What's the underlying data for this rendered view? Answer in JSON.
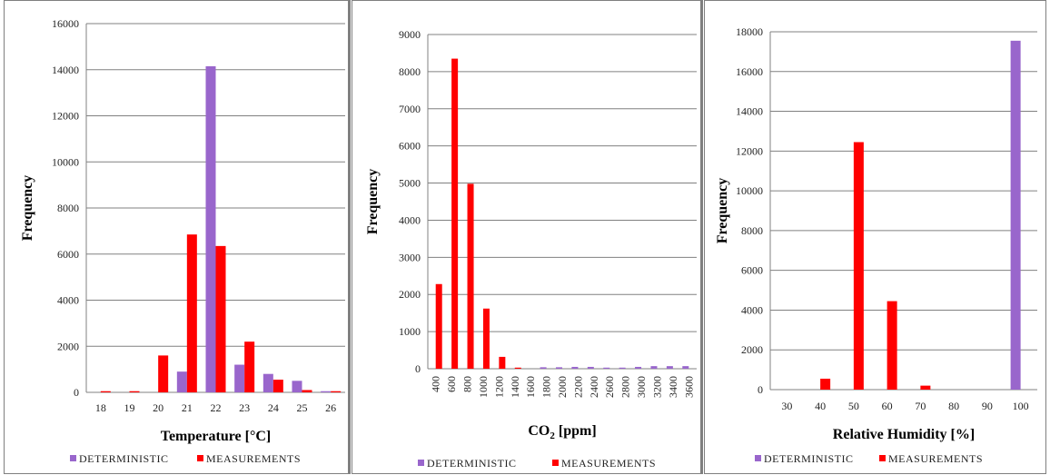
{
  "colors": {
    "deterministic": "#9966cc",
    "measurements": "#ff0000",
    "grid": "#808080",
    "axis": "#808080"
  },
  "legend": {
    "deterministic": "DETERMINISTIC",
    "measurements": "MEASUREMENTS"
  },
  "chart_data": [
    {
      "type": "bar",
      "categories": [
        "18",
        "19",
        "20",
        "21",
        "22",
        "23",
        "24",
        "25",
        "26"
      ],
      "xlabel": "Temperature [°C]",
      "ylabel": "Frequency",
      "ylim": [
        0,
        16000
      ],
      "yticks": [
        0,
        2000,
        4000,
        6000,
        8000,
        10000,
        12000,
        14000,
        16000
      ],
      "grid": true,
      "legend_position": "bottom",
      "series": [
        {
          "name": "DETERMINISTIC",
          "values": [
            0,
            0,
            0,
            900,
            14150,
            1200,
            800,
            500,
            50
          ]
        },
        {
          "name": "MEASUREMENTS",
          "values": [
            50,
            50,
            1600,
            6850,
            6350,
            2200,
            550,
            100,
            50
          ]
        }
      ]
    },
    {
      "type": "bar",
      "categories": [
        "400",
        "600",
        "800",
        "1000",
        "1200",
        "1400",
        "1600",
        "1800",
        "2000",
        "2200",
        "2400",
        "2600",
        "2800",
        "3000",
        "3200",
        "3400",
        "3600"
      ],
      "xlabel": "CO",
      "xlabel_sub": "2",
      "xlabel_suffix": " [ppm]",
      "ylabel": "Frequency",
      "ylim": [
        0,
        9000
      ],
      "yticks": [
        0,
        1000,
        2000,
        3000,
        4000,
        5000,
        6000,
        7000,
        8000,
        9000
      ],
      "grid": true,
      "legend_position": "bottom",
      "series": [
        {
          "name": "DETERMINISTIC",
          "values": [
            0,
            0,
            0,
            0,
            0,
            0,
            0,
            40,
            40,
            50,
            50,
            30,
            30,
            50,
            70,
            70,
            70
          ]
        },
        {
          "name": "MEASUREMENTS",
          "values": [
            2280,
            8350,
            4980,
            1620,
            320,
            30,
            0,
            0,
            0,
            0,
            0,
            0,
            0,
            0,
            0,
            0,
            0
          ]
        }
      ]
    },
    {
      "type": "bar",
      "categories": [
        "30",
        "40",
        "50",
        "60",
        "70",
        "80",
        "90",
        "100"
      ],
      "xlabel": "Relative Humidity [%]",
      "ylabel": "Frequency",
      "ylim": [
        0,
        18000
      ],
      "yticks": [
        0,
        2000,
        4000,
        6000,
        8000,
        10000,
        12000,
        14000,
        16000,
        18000
      ],
      "grid": true,
      "legend_position": "bottom",
      "series": [
        {
          "name": "DETERMINISTIC",
          "values": [
            0,
            0,
            0,
            0,
            0,
            0,
            0,
            17550
          ]
        },
        {
          "name": "MEASUREMENTS",
          "values": [
            0,
            550,
            12450,
            4450,
            200,
            0,
            0,
            0
          ]
        }
      ]
    }
  ]
}
